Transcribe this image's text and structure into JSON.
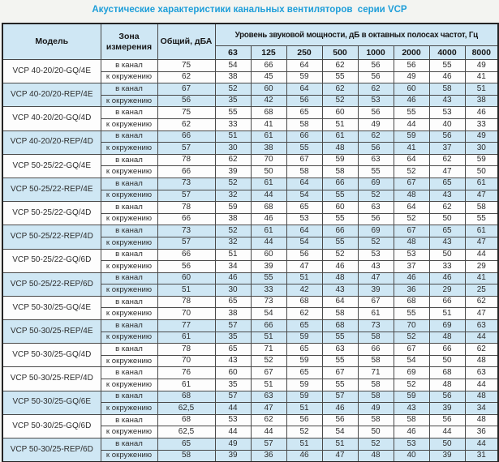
{
  "title": "Акустические характеристики канальных вентиляторов  серии VCP",
  "colors": {
    "accent_blue": "#1e9ed9",
    "band_blue": "#cfe7f4",
    "band_white": "#fdfdfd",
    "border_dark": "#333333"
  },
  "table": {
    "headers": {
      "model": "Модель",
      "zone": "Зона измерения",
      "total": "Общий, дБА",
      "spl": "Уровень звуковой мощности, дБ в октавных полосах частот, Гц",
      "frequencies": [
        "63",
        "125",
        "250",
        "500",
        "1000",
        "2000",
        "4000",
        "8000"
      ]
    },
    "models": [
      {
        "name": "VCP 40-20/20-GQ/4E",
        "band": "white",
        "rows": [
          {
            "zone": "в канал",
            "total": "75",
            "levels": [
              54,
              66,
              64,
              62,
              56,
              56,
              55,
              49
            ]
          },
          {
            "zone": "к окружению",
            "total": "62",
            "levels": [
              38,
              45,
              59,
              55,
              56,
              49,
              46,
              41
            ]
          }
        ]
      },
      {
        "name": "VCP 40-20/20-REP/4E",
        "band": "blue",
        "rows": [
          {
            "zone": "в канал",
            "total": "67",
            "levels": [
              52,
              60,
              64,
              62,
              62,
              60,
              58,
              51
            ]
          },
          {
            "zone": "к окружению",
            "total": "56",
            "levels": [
              35,
              42,
              56,
              52,
              53,
              46,
              43,
              38
            ]
          }
        ]
      },
      {
        "name": "VCP 40-20/20-GQ/4D",
        "band": "white",
        "rows": [
          {
            "zone": "в канал",
            "total": "75",
            "levels": [
              55,
              68,
              65,
              60,
              56,
              55,
              53,
              46
            ]
          },
          {
            "zone": "к окружению",
            "total": "62",
            "levels": [
              33,
              41,
              58,
              51,
              49,
              44,
              40,
              33
            ]
          }
        ]
      },
      {
        "name": "VCP 40-20/20-REP/4D",
        "band": "blue",
        "rows": [
          {
            "zone": "в канал",
            "total": "66",
            "levels": [
              51,
              61,
              66,
              61,
              62,
              59,
              56,
              49
            ]
          },
          {
            "zone": "к окружению",
            "total": "57",
            "levels": [
              30,
              38,
              55,
              48,
              56,
              41,
              37,
              30
            ]
          }
        ]
      },
      {
        "name": "VCP 50-25/22-GQ/4E",
        "band": "white",
        "rows": [
          {
            "zone": "в канал",
            "total": "78",
            "levels": [
              62,
              70,
              67,
              59,
              63,
              64,
              62,
              59
            ]
          },
          {
            "zone": "к окружению",
            "total": "66",
            "levels": [
              39,
              50,
              58,
              58,
              55,
              52,
              47,
              50
            ]
          }
        ]
      },
      {
        "name": "VCP 50-25/22-REP/4E",
        "band": "blue",
        "rows": [
          {
            "zone": "в канал",
            "total": "73",
            "levels": [
              52,
              61,
              64,
              66,
              69,
              67,
              65,
              61
            ]
          },
          {
            "zone": "к окружению",
            "total": "57",
            "levels": [
              32,
              44,
              54,
              55,
              52,
              48,
              43,
              47
            ]
          }
        ]
      },
      {
        "name": "VCP 50-25/22-GQ/4D",
        "band": "white",
        "rows": [
          {
            "zone": "в канал",
            "total": "78",
            "levels": [
              59,
              68,
              65,
              60,
              63,
              64,
              62,
              58
            ]
          },
          {
            "zone": "к окружению",
            "total": "66",
            "levels": [
              38,
              46,
              53,
              55,
              56,
              52,
              50,
              55
            ]
          }
        ]
      },
      {
        "name": "VCP 50-25/22-REP/4D",
        "band": "blue",
        "rows": [
          {
            "zone": "в канал",
            "total": "73",
            "levels": [
              52,
              61,
              64,
              66,
              69,
              67,
              65,
              61
            ]
          },
          {
            "zone": "к окружению",
            "total": "57",
            "levels": [
              32,
              44,
              54,
              55,
              52,
              48,
              43,
              47
            ]
          }
        ]
      },
      {
        "name": "VCP 50-25/22-GQ/6D",
        "band": "white",
        "rows": [
          {
            "zone": "в канал",
            "total": "66",
            "levels": [
              51,
              60,
              56,
              52,
              53,
              53,
              50,
              44
            ]
          },
          {
            "zone": "к окружению",
            "total": "56",
            "levels": [
              34,
              39,
              47,
              46,
              43,
              37,
              33,
              29
            ]
          }
        ]
      },
      {
        "name": "VCP 50-25/22-REP/6D",
        "band": "blue",
        "rows": [
          {
            "zone": "в канал",
            "total": "60",
            "levels": [
              46,
              55,
              51,
              48,
              47,
              46,
              46,
              41
            ]
          },
          {
            "zone": "к окружению",
            "total": "51",
            "levels": [
              30,
              33,
              42,
              43,
              39,
              36,
              29,
              25
            ]
          }
        ]
      },
      {
        "name": "VCP 50-30/25-GQ/4E",
        "band": "white",
        "rows": [
          {
            "zone": "в канал",
            "total": "78",
            "levels": [
              65,
              73,
              68,
              64,
              67,
              68,
              66,
              62
            ]
          },
          {
            "zone": "к окружению",
            "total": "70",
            "levels": [
              38,
              54,
              62,
              58,
              61,
              55,
              51,
              47
            ]
          }
        ]
      },
      {
        "name": "VCP 50-30/25-REP/4E",
        "band": "blue",
        "rows": [
          {
            "zone": "в канал",
            "total": "77",
            "levels": [
              57,
              66,
              65,
              68,
              73,
              70,
              69,
              63
            ]
          },
          {
            "zone": "к окружению",
            "total": "61",
            "levels": [
              35,
              51,
              59,
              55,
              58,
              52,
              48,
              44
            ]
          }
        ]
      },
      {
        "name": "VCP 50-30/25-GQ/4D",
        "band": "white",
        "rows": [
          {
            "zone": "в канал",
            "total": "78",
            "levels": [
              65,
              71,
              65,
              63,
              66,
              67,
              66,
              62
            ]
          },
          {
            "zone": "к окружению",
            "total": "70",
            "levels": [
              43,
              52,
              59,
              55,
              58,
              54,
              50,
              48
            ]
          }
        ]
      },
      {
        "name": "VCP 50-30/25-REP/4D",
        "band": "white",
        "rows": [
          {
            "zone": "в канал",
            "total": "76",
            "levels": [
              60,
              67,
              65,
              67,
              71,
              69,
              68,
              63
            ]
          },
          {
            "zone": "к окружению",
            "total": "61",
            "levels": [
              35,
              51,
              59,
              55,
              58,
              52,
              48,
              44
            ]
          }
        ]
      },
      {
        "name": "VCP 50-30/25-GQ/6E",
        "band": "blue",
        "rows": [
          {
            "zone": "в канал",
            "total": "68",
            "levels": [
              57,
              63,
              59,
              57,
              58,
              59,
              56,
              48
            ]
          },
          {
            "zone": "к окружению",
            "total": "62,5",
            "levels": [
              44,
              47,
              51,
              46,
              49,
              43,
              39,
              34
            ]
          }
        ]
      },
      {
        "name": "VCP 50-30/25-GQ/6D",
        "band": "white",
        "rows": [
          {
            "zone": "в канал",
            "total": "68",
            "levels": [
              53,
              62,
              56,
              56,
              58,
              58,
              56,
              48
            ]
          },
          {
            "zone": "к окружению",
            "total": "62,5",
            "levels": [
              44,
              44,
              52,
              54,
              50,
              46,
              44,
              36
            ]
          }
        ]
      },
      {
        "name": "VCP 50-30/25-REP/6D",
        "band": "blue",
        "rows": [
          {
            "zone": "в канал",
            "total": "65",
            "levels": [
              49,
              57,
              51,
              51,
              52,
              53,
              50,
              44
            ]
          },
          {
            "zone": "к окружению",
            "total": "58",
            "levels": [
              39,
              36,
              46,
              47,
              48,
              40,
              39,
              31
            ]
          }
        ]
      }
    ]
  }
}
